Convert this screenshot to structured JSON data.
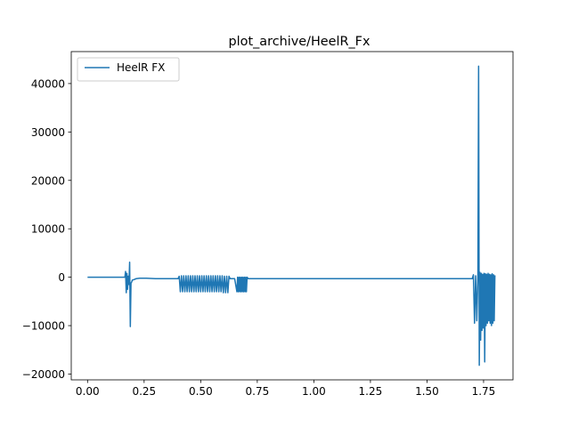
{
  "chart_data": {
    "type": "line",
    "title": "plot_archive/HeelR_Fx",
    "xlabel": "",
    "ylabel": "",
    "xlim": [
      -0.072,
      1.88
    ],
    "ylim": [
      -21200,
      46600
    ],
    "xticks": [
      0.0,
      0.25,
      0.5,
      0.75,
      1.0,
      1.25,
      1.5,
      1.75
    ],
    "xtick_labels": [
      "0.00",
      "0.25",
      "0.50",
      "0.75",
      "1.00",
      "1.25",
      "1.50",
      "1.75"
    ],
    "yticks": [
      -20000,
      -10000,
      0,
      10000,
      20000,
      30000,
      40000
    ],
    "ytick_labels": [
      "−20000",
      "−10000",
      "0",
      "10000",
      "20000",
      "30000",
      "40000"
    ],
    "grid": false,
    "legend": {
      "placement": "top-left"
    },
    "series": [
      {
        "name": "HeelR FX",
        "color": "#1f77b4",
        "x": [
          0.0,
          0.1,
          0.165,
          0.168,
          0.171,
          0.174,
          0.177,
          0.18,
          0.183,
          0.186,
          0.189,
          0.192,
          0.195,
          0.198,
          0.205,
          0.215,
          0.23,
          0.26,
          0.3,
          0.35,
          0.4,
          0.405,
          0.41,
          0.415,
          0.42,
          0.425,
          0.43,
          0.435,
          0.44,
          0.445,
          0.45,
          0.455,
          0.46,
          0.465,
          0.47,
          0.475,
          0.48,
          0.485,
          0.49,
          0.495,
          0.5,
          0.505,
          0.51,
          0.515,
          0.52,
          0.525,
          0.53,
          0.535,
          0.54,
          0.545,
          0.55,
          0.555,
          0.56,
          0.565,
          0.57,
          0.575,
          0.58,
          0.585,
          0.59,
          0.595,
          0.6,
          0.605,
          0.61,
          0.615,
          0.62,
          0.625,
          0.63,
          0.64,
          0.65,
          0.66,
          0.663,
          0.666,
          0.669,
          0.672,
          0.675,
          0.678,
          0.681,
          0.684,
          0.687,
          0.69,
          0.693,
          0.696,
          0.699,
          0.702,
          0.705,
          0.71,
          0.8,
          1.0,
          1.2,
          1.4,
          1.6,
          1.7,
          1.705,
          1.71,
          1.715,
          1.72,
          1.725,
          1.728,
          1.731,
          1.734,
          1.737,
          1.74,
          1.743,
          1.746,
          1.749,
          1.752,
          1.755,
          1.758,
          1.761,
          1.764,
          1.767,
          1.77,
          1.773,
          1.776,
          1.779,
          1.782,
          1.785,
          1.788,
          1.791,
          1.794,
          1.797,
          1.8
        ],
        "y": [
          0,
          0,
          0,
          1200,
          -3200,
          800,
          -2500,
          200,
          -1500,
          3100,
          -10200,
          -1200,
          -1000,
          -600,
          -500,
          -300,
          -200,
          -200,
          -300,
          -300,
          -300,
          200,
          -3000,
          300,
          -3000,
          300,
          -3000,
          300,
          -3000,
          300,
          -3000,
          300,
          -3000,
          300,
          -3000,
          300,
          -3000,
          300,
          -3000,
          300,
          -3000,
          300,
          -3000,
          300,
          -3000,
          300,
          -3000,
          300,
          -3000,
          300,
          -3000,
          300,
          -3000,
          300,
          -3000,
          300,
          -3000,
          300,
          -3000,
          300,
          -3200,
          200,
          -3200,
          200,
          -3200,
          200,
          -300,
          -300,
          -300,
          -3000,
          0,
          -3000,
          0,
          -3000,
          0,
          -3000,
          0,
          -3000,
          0,
          -3000,
          0,
          -3000,
          0,
          -3000,
          0,
          -300,
          -300,
          -300,
          -300,
          -300,
          -300,
          -300,
          500,
          -9500,
          300,
          -9000,
          700,
          43600,
          -18200,
          1000,
          -13000,
          800,
          -11000,
          600,
          -10500,
          800,
          -17500,
          700,
          -10000,
          600,
          -9500,
          800,
          -9000,
          600,
          -9500,
          500,
          -10000,
          700,
          -9500,
          500,
          -9000,
          400
        ]
      }
    ]
  }
}
